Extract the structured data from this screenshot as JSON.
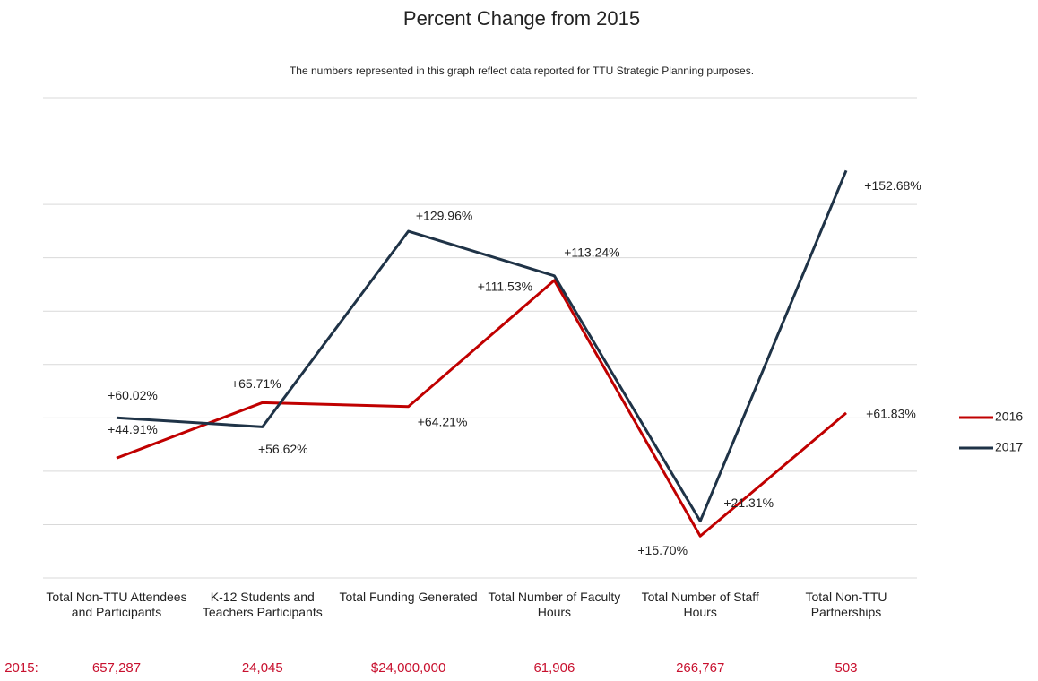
{
  "chart_data": {
    "type": "line",
    "title": "Percent Change from 2015",
    "subtitle": "The numbers represented in this graph reflect data reported for TTU Strategic Planning purposes.",
    "categories": [
      "Total Non-TTU Attendees and Participants",
      "K-12 Students and Teachers Participants",
      "Total Funding Generated",
      "Total Number of Faculty Hours",
      "Total Number of Staff Hours",
      "Total Non-TTU Partnerships"
    ],
    "series": [
      {
        "name": "2016",
        "color": "#c00000",
        "values": [
          44.91,
          65.71,
          64.21,
          111.53,
          15.7,
          61.83
        ],
        "value_labels": [
          "+44.91%",
          "+65.71%",
          "+64.21%",
          "+111.53%",
          "+15.70%",
          "+61.83%"
        ]
      },
      {
        "name": "2017",
        "color": "#1f3347",
        "values": [
          60.02,
          56.62,
          129.96,
          113.24,
          21.31,
          152.68
        ],
        "value_labels": [
          "+60.02%",
          "+56.62%",
          "+129.96%",
          "+113.24%",
          "+21.31%",
          "+152.68%"
        ]
      }
    ],
    "ylim": [
      0,
      180
    ],
    "yticks": [
      0,
      20,
      40,
      60,
      80,
      100,
      120,
      140,
      160,
      180
    ],
    "grid": true,
    "legend": "right",
    "baseline_label": "2015:",
    "baseline_values": [
      "657,287",
      "24,045",
      "$24,000,000",
      "61,906",
      "266,767",
      "503"
    ]
  }
}
